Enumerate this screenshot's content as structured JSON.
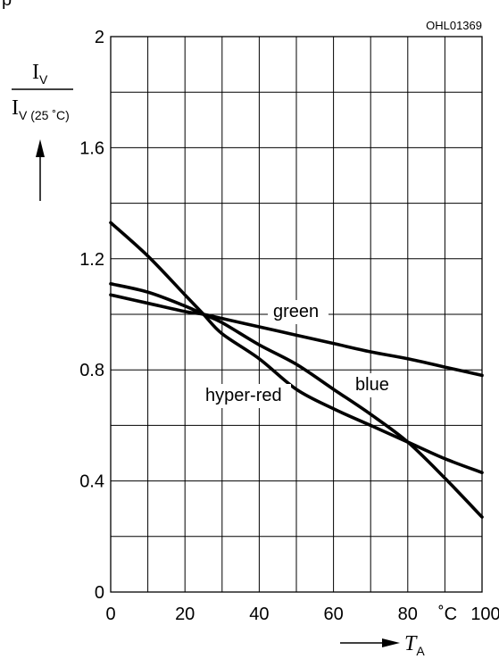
{
  "chart_data": {
    "type": "line",
    "figure_code": "OHL01369",
    "header_fragment": "p",
    "y_axis": {
      "label_main": "I",
      "label_main_sub": "V",
      "label_den": "I",
      "label_den_sub": "V (25 ˚C)",
      "range": [
        0,
        2
      ],
      "ticks": [
        "0",
        "0.4",
        "0.8",
        "1.2",
        "1.6",
        "2"
      ],
      "tick_values": [
        0,
        0.4,
        0.8,
        1.2,
        1.6,
        2
      ],
      "grid_step": 0.2
    },
    "x_axis": {
      "label": "T",
      "label_sub": "A",
      "unit": "˚C",
      "range": [
        0,
        100
      ],
      "ticks": [
        "0",
        "20",
        "40",
        "60",
        "80",
        "100"
      ],
      "tick_values": [
        0,
        20,
        40,
        60,
        80,
        100
      ],
      "grid_step": 10
    },
    "grid": true,
    "series": [
      {
        "name": "green",
        "x": [
          0,
          10,
          20,
          25,
          30,
          40,
          50,
          60,
          70,
          80,
          90,
          100
        ],
        "y": [
          1.07,
          1.04,
          1.01,
          1.0,
          0.985,
          0.955,
          0.925,
          0.895,
          0.865,
          0.84,
          0.81,
          0.78
        ]
      },
      {
        "name": "hyper-red",
        "x": [
          0,
          10,
          20,
          25,
          30,
          40,
          50,
          60,
          70,
          80,
          90,
          100
        ],
        "y": [
          1.33,
          1.21,
          1.07,
          1.0,
          0.93,
          0.84,
          0.73,
          0.66,
          0.6,
          0.54,
          0.48,
          0.43
        ]
      },
      {
        "name": "blue",
        "x": [
          0,
          10,
          20,
          25,
          30,
          40,
          50,
          60,
          70,
          80,
          90,
          100
        ],
        "y": [
          1.11,
          1.08,
          1.03,
          1.0,
          0.97,
          0.89,
          0.82,
          0.73,
          0.64,
          0.54,
          0.41,
          0.27
        ]
      }
    ]
  }
}
